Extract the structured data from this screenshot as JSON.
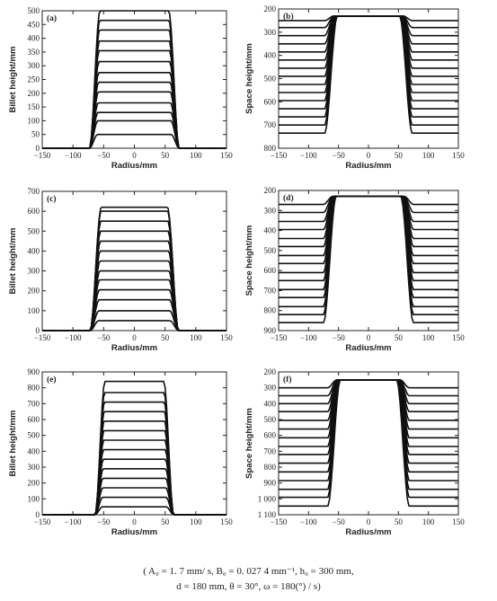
{
  "chart_data": [
    {
      "type": "line",
      "panel_label": "(a)",
      "xlabel": "Radius/mm",
      "ylabel": "Billet height/mm",
      "x_ticks": [
        -150,
        -100,
        -50,
        0,
        50,
        100,
        150
      ],
      "y_ticks": [
        0,
        50,
        100,
        150,
        200,
        250,
        300,
        350,
        400,
        450,
        500
      ],
      "xlim": [
        -150,
        150
      ],
      "ylim": [
        0,
        500
      ],
      "y_inverted": false,
      "grid": false,
      "series_levels": [
        50,
        100,
        130,
        165,
        205,
        240,
        275,
        315,
        355,
        390,
        430,
        465,
        500
      ],
      "profile_edge_x": [
        60,
        73
      ],
      "profile_foot_y": 0
    },
    {
      "type": "line",
      "panel_label": "(b)",
      "xlabel": "Radius/mm",
      "ylabel": "Space height/mm",
      "x_ticks": [
        -150,
        -100,
        -50,
        0,
        50,
        100,
        150
      ],
      "y_ticks": [
        200,
        300,
        400,
        500,
        600,
        700,
        800
      ],
      "xlim": [
        -150,
        150
      ],
      "ylim": [
        200,
        800
      ],
      "y_inverted": true,
      "grid": false,
      "series_levels": [
        250,
        280,
        315,
        350,
        385,
        420,
        455,
        490,
        525,
        560,
        595,
        630,
        665,
        700,
        735
      ],
      "profile_edge_x": [
        60,
        73
      ],
      "profile_foot_y": 230
    },
    {
      "type": "line",
      "panel_label": "(c)",
      "xlabel": "Radius/mm",
      "ylabel": "Billet height/mm",
      "x_ticks": [
        -150,
        -100,
        -50,
        0,
        50,
        100,
        150
      ],
      "y_ticks": [
        0,
        100,
        200,
        300,
        400,
        500,
        600,
        700
      ],
      "xlim": [
        -150,
        150
      ],
      "ylim": [
        0,
        700
      ],
      "y_inverted": false,
      "grid": false,
      "series_levels": [
        50,
        100,
        155,
        205,
        255,
        300,
        350,
        400,
        450,
        500,
        550,
        600,
        620
      ],
      "profile_edge_x": [
        58,
        72
      ],
      "profile_foot_y": 0
    },
    {
      "type": "line",
      "panel_label": "(d)",
      "xlabel": "Radius/mm",
      "ylabel": "Space height/mm",
      "x_ticks": [
        -150,
        -100,
        -50,
        0,
        50,
        100,
        150
      ],
      "y_ticks": [
        200,
        300,
        400,
        500,
        600,
        700,
        800,
        900
      ],
      "xlim": [
        -150,
        150
      ],
      "ylim": [
        200,
        900
      ],
      "y_inverted": true,
      "grid": false,
      "series_levels": [
        270,
        310,
        355,
        395,
        440,
        480,
        525,
        565,
        610,
        650,
        695,
        735,
        780,
        820,
        860
      ],
      "profile_edge_x": [
        62,
        75
      ],
      "profile_foot_y": 230
    },
    {
      "type": "line",
      "panel_label": "(e)",
      "xlabel": "Radius/mm",
      "ylabel": "Billet height/mm",
      "x_ticks": [
        -150,
        -100,
        -50,
        0,
        50,
        100,
        150
      ],
      "y_ticks": [
        0,
        100,
        200,
        300,
        400,
        500,
        600,
        700,
        800,
        900
      ],
      "xlim": [
        -150,
        150
      ],
      "ylim": [
        0,
        900
      ],
      "y_inverted": false,
      "grid": false,
      "series_levels": [
        50,
        110,
        170,
        230,
        290,
        350,
        410,
        470,
        530,
        590,
        650,
        710,
        770,
        840
      ],
      "profile_edge_x": [
        52,
        64
      ],
      "profile_foot_y": 0
    },
    {
      "type": "line",
      "panel_label": "(f)",
      "xlabel": "Radius/mm",
      "ylabel": "Space height/mm",
      "x_ticks": [
        -150,
        -100,
        -50,
        0,
        50,
        100,
        150
      ],
      "y_ticks": [
        200,
        300,
        400,
        500,
        600,
        700,
        800,
        900,
        1000,
        1100
      ],
      "y_tick_labels": [
        "200",
        "300",
        "400",
        "500",
        "600",
        "700",
        "800",
        "900",
        "1 000",
        "1 100"
      ],
      "xlim": [
        -150,
        150
      ],
      "ylim": [
        200,
        1100
      ],
      "y_inverted": true,
      "grid": false,
      "series_levels": [
        300,
        350,
        400,
        450,
        505,
        560,
        615,
        670,
        720,
        775,
        830,
        885,
        940,
        990,
        1045
      ],
      "profile_edge_x": [
        55,
        68
      ],
      "profile_foot_y": 250
    }
  ],
  "caption": {
    "line1": "( A₀ = 1. 7 mm/ s,  B₀ = 0. 027 4 mm⁻¹,  h₀ = 300 mm,",
    "line2": "d = 180 mm,  θ = 30°,  ω = 180(°) / s)"
  },
  "style": {
    "line_color": "#111111",
    "axis_color": "#222222",
    "text_color": "#222222"
  }
}
